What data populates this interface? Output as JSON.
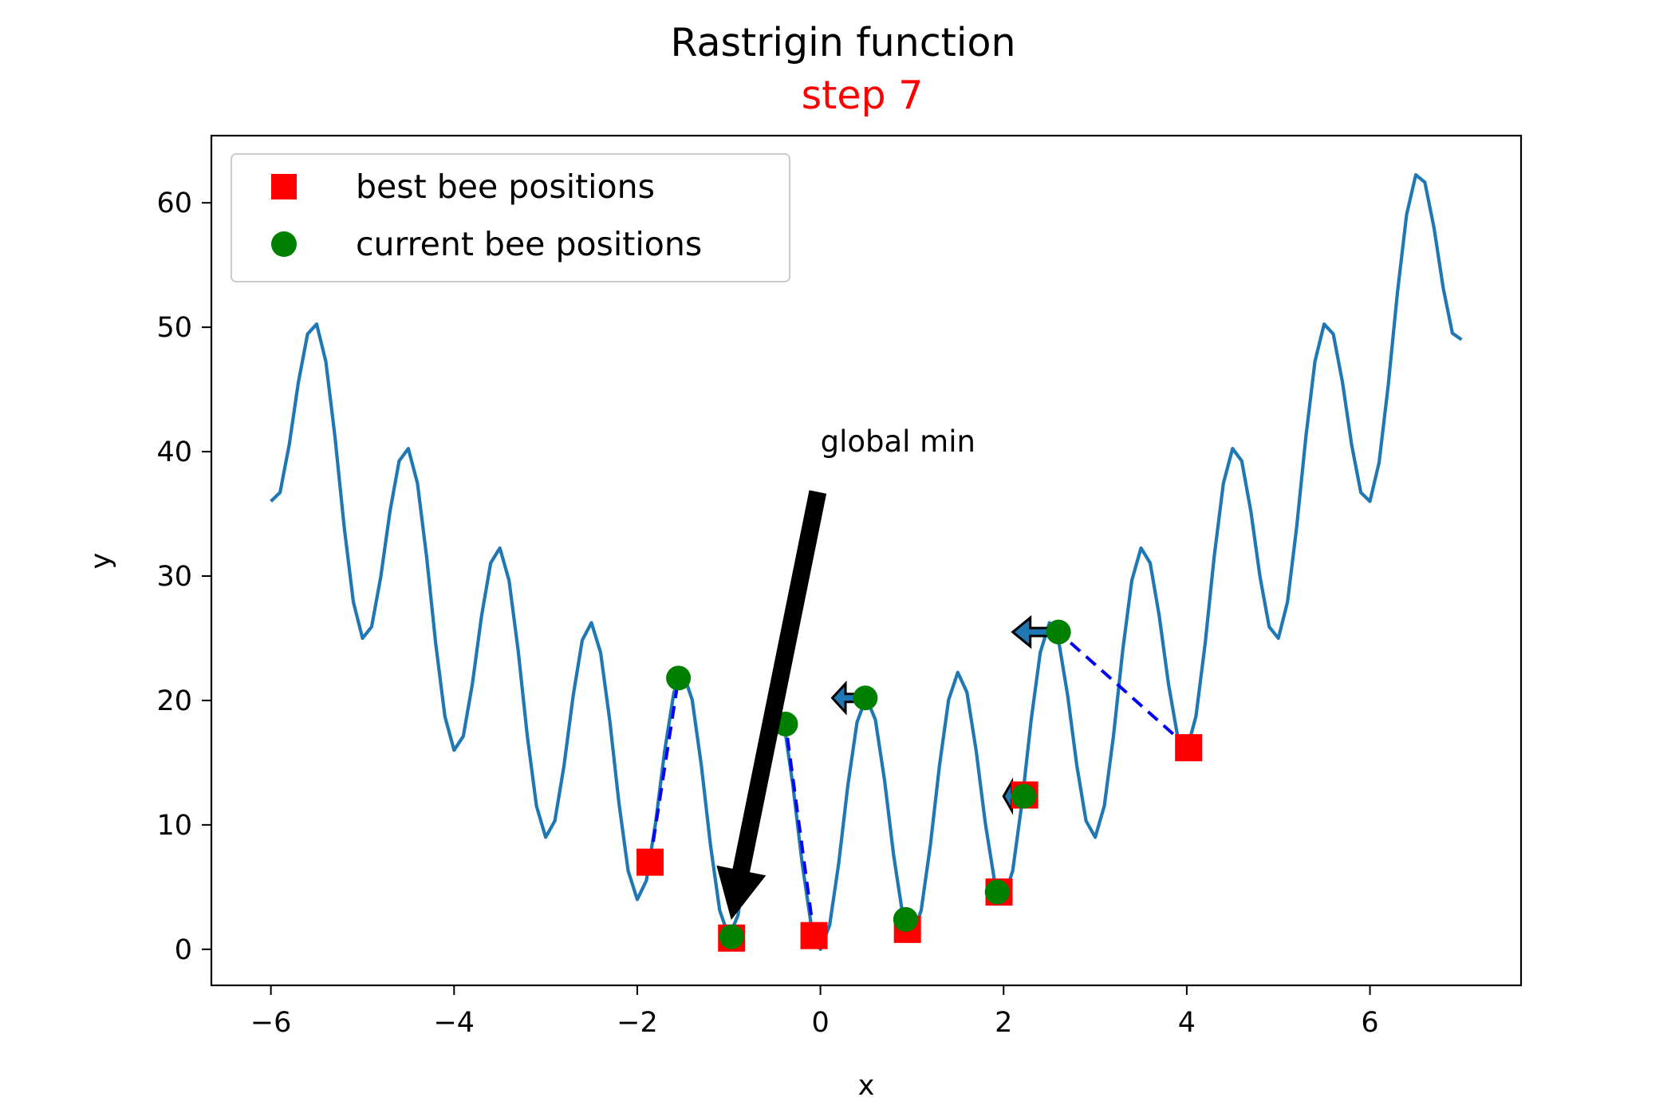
{
  "chart_data": {
    "type": "line",
    "title": "Rastrigin function",
    "subtitle": "step 7",
    "xlabel": "x",
    "ylabel": "y",
    "xlim": [
      -6.65,
      7.65
    ],
    "ylim": [
      -2.9,
      65.4
    ],
    "xticks": [
      -6,
      -4,
      -2,
      0,
      2,
      4,
      6
    ],
    "xtick_labels": [
      "−6",
      "−4",
      "−2",
      "0",
      "2",
      "4",
      "6"
    ],
    "yticks": [
      0,
      10,
      20,
      30,
      40,
      50,
      60
    ],
    "ytick_labels": [
      "0",
      "10",
      "20",
      "30",
      "40",
      "50",
      "60"
    ],
    "grid": false,
    "legend_position": "top-left",
    "curve": {
      "x_range": [
        -6,
        7
      ],
      "samples": 131
    },
    "series": [
      {
        "name": "best bee positions",
        "marker": "square",
        "color": "#ff0000",
        "points": [
          {
            "x": -1.86,
            "y": 7.0
          },
          {
            "x": -0.97,
            "y": 0.9
          },
          {
            "x": -0.07,
            "y": 1.1
          },
          {
            "x": 0.95,
            "y": 1.6
          },
          {
            "x": 1.95,
            "y": 4.6
          },
          {
            "x": 2.23,
            "y": 12.4
          },
          {
            "x": 4.02,
            "y": 16.2
          }
        ]
      },
      {
        "name": "current bee positions",
        "marker": "circle",
        "color": "#008000",
        "points": [
          {
            "x": -1.55,
            "y": 21.8
          },
          {
            "x": -0.97,
            "y": 1.0
          },
          {
            "x": -0.38,
            "y": 18.1
          },
          {
            "x": 0.49,
            "y": 20.2
          },
          {
            "x": 0.93,
            "y": 2.4
          },
          {
            "x": 1.93,
            "y": 4.6
          },
          {
            "x": 2.22,
            "y": 12.3
          },
          {
            "x": 2.6,
            "y": 25.5
          }
        ]
      }
    ],
    "velocity_links": [
      {
        "from": 0,
        "to": 0
      },
      {
        "from": 1,
        "to": 1
      },
      {
        "from": 2,
        "to": 2
      },
      {
        "from": 3,
        "to": 4
      },
      {
        "from": 4,
        "to": 5
      },
      {
        "from": 5,
        "to": 6
      },
      {
        "from": 6,
        "to": 7
      }
    ],
    "velocity_arrows": [
      {
        "x": 2.55,
        "y": 25.5,
        "dx": -0.45,
        "dy": 0
      },
      {
        "x": 0.45,
        "y": 20.2,
        "dx": -0.32,
        "dy": 0
      },
      {
        "x": 2.2,
        "y": 12.3,
        "dx": -0.2,
        "dy": 0
      }
    ],
    "annotations": [
      {
        "text": "global min",
        "text_x": 0.0,
        "text_y": 40.0,
        "arrow_from_x": -0.03,
        "arrow_from_y": 36.7,
        "arrow_to_x": -0.97,
        "arrow_to_y": 2.5
      }
    ],
    "colors": {
      "curve": "#1f77b4",
      "link": "#0000ff",
      "subtitle": "#ff0000",
      "arrow": "#000000"
    }
  }
}
